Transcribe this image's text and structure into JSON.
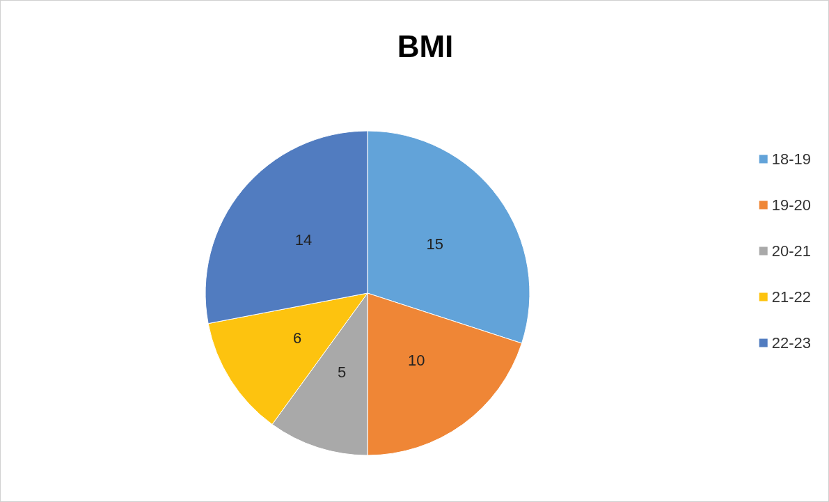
{
  "chart_data": {
    "type": "pie",
    "title": "BMI",
    "categories": [
      "18-19",
      "19-20",
      "20-21",
      "21-22",
      "22-23"
    ],
    "values": [
      15,
      10,
      5,
      6,
      14
    ],
    "colors": [
      "#62a3d9",
      "#ef8636",
      "#a9a9a9",
      "#fdc30f",
      "#517cc0"
    ],
    "data_labels": true,
    "legend": "right"
  }
}
